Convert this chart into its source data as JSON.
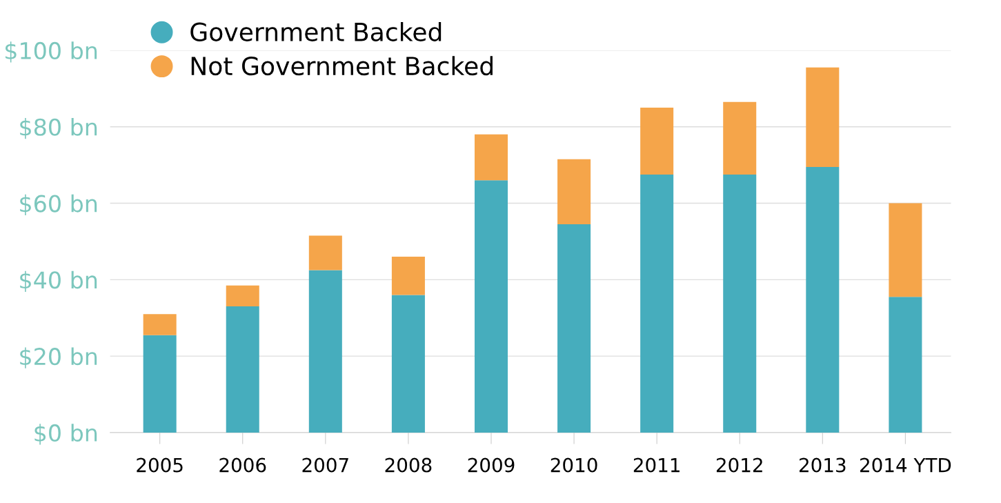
{
  "chart_data": {
    "type": "bar",
    "stacked": true,
    "categories": [
      "2005",
      "2006",
      "2007",
      "2008",
      "2009",
      "2010",
      "2011",
      "2012",
      "2013",
      "2014 YTD"
    ],
    "series": [
      {
        "name": "Government Backed",
        "color": "#46adbd",
        "values": [
          25.5,
          33,
          42.5,
          36,
          66,
          54.5,
          67.5,
          67.5,
          69.5,
          35.5
        ]
      },
      {
        "name": "Not Government Backed",
        "color": "#f5a54a",
        "values": [
          5.5,
          5.5,
          9,
          10,
          12,
          17,
          17.5,
          19,
          26,
          24.5
        ]
      }
    ],
    "ylim": [
      0,
      100
    ],
    "yticks": [
      {
        "value": 0,
        "label": "$0 bn"
      },
      {
        "value": 20,
        "label": "$20 bn"
      },
      {
        "value": 40,
        "label": "$40 bn"
      },
      {
        "value": 60,
        "label": "$60 bn"
      },
      {
        "value": 80,
        "label": "$80 bn"
      },
      {
        "value": 100,
        "label": "$100 bn"
      }
    ],
    "grid": "y",
    "legend": "top left",
    "marker": "circle"
  }
}
